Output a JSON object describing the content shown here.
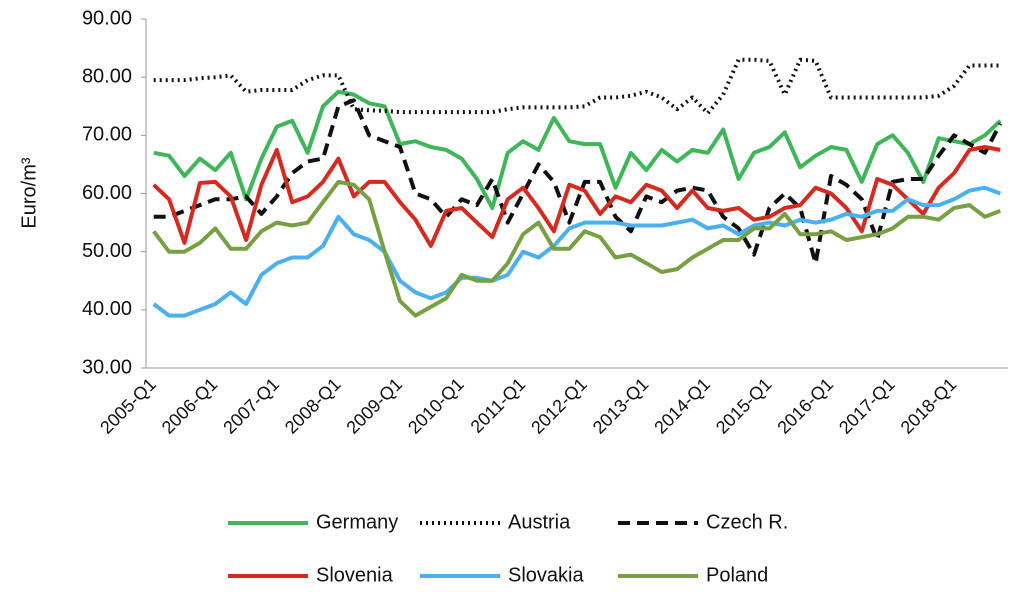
{
  "chart_data": {
    "type": "line",
    "y_label": "Euro/m³",
    "categories": [
      "2005-Q1",
      null,
      null,
      null,
      "2006-Q1",
      null,
      null,
      null,
      "2007-Q1",
      null,
      null,
      null,
      "2008-Q1",
      null,
      null,
      null,
      "2009-Q1",
      null,
      null,
      null,
      "2010-Q1",
      null,
      null,
      null,
      "2011-Q1",
      null,
      null,
      null,
      "2012-Q1",
      null,
      null,
      null,
      "2013-Q1",
      null,
      null,
      null,
      "2014-Q1",
      null,
      null,
      null,
      "2015-Q1",
      null,
      null,
      null,
      "2016-Q1",
      null,
      null,
      null,
      "2017-Q1",
      null,
      null,
      null,
      "2018-Q1",
      null,
      null,
      null
    ],
    "ylim": [
      30,
      90
    ],
    "yticks": [
      {
        "value": 30,
        "label": "30.00"
      },
      {
        "value": 40,
        "label": "40.00"
      },
      {
        "value": 50,
        "label": "50.00"
      },
      {
        "value": 60,
        "label": "60.00"
      },
      {
        "value": 70,
        "label": "70.00"
      },
      {
        "value": 80,
        "label": "80.00"
      },
      {
        "value": 90,
        "label": "90.00"
      }
    ],
    "grid": false,
    "legend": "bottom",
    "series": [
      {
        "name": "Germany",
        "color": "#3fb65a",
        "line_style": "solid",
        "values": [
          67,
          66.5,
          63,
          66,
          64,
          67,
          59,
          66,
          71.5,
          72.5,
          67,
          75,
          77.5,
          77,
          75.5,
          75,
          68.5,
          69,
          68,
          67.5,
          66,
          62.5,
          57.5,
          67,
          69,
          67.5,
          73,
          69,
          68.5,
          68.5,
          61,
          67,
          64,
          67.5,
          65.5,
          67.5,
          67,
          71,
          62.5,
          67,
          68,
          70.5,
          64.5,
          66.5,
          68,
          67.5,
          62,
          68.5,
          70,
          67,
          62,
          69.5,
          69,
          68.5,
          70,
          72.5
        ]
      },
      {
        "name": "Austria",
        "color": "#111111",
        "line_style": "dotted",
        "values": [
          79.5,
          79.5,
          79.5,
          79.8,
          80,
          80.3,
          77.5,
          77.8,
          77.8,
          77.8,
          79.5,
          80.3,
          80.3,
          74.5,
          74.3,
          74.2,
          74,
          74,
          74,
          74,
          74,
          74,
          74,
          74.5,
          74.8,
          74.8,
          74.8,
          74.8,
          75,
          76.5,
          76.5,
          76.8,
          77.5,
          76.5,
          74.5,
          76.5,
          73.8,
          77,
          83,
          83,
          82.8,
          77,
          83,
          82.8,
          76.5,
          76.5,
          76.5,
          76.5,
          76.5,
          76.5,
          76.5,
          76.8,
          78.5,
          82,
          82,
          82
        ]
      },
      {
        "name": "Czech R.",
        "color": "#111111",
        "line_style": "dashed",
        "values": [
          56,
          56,
          57,
          58,
          59,
          59,
          59.5,
          56.5,
          59.5,
          63.5,
          65.5,
          66,
          75,
          76,
          70,
          69,
          68,
          60,
          59,
          56,
          59,
          58,
          62.5,
          55,
          60,
          65,
          62,
          55,
          62,
          62,
          56,
          53.5,
          59.5,
          58.5,
          60.5,
          61,
          60.5,
          56,
          54,
          49.5,
          57.5,
          60,
          57.5,
          48,
          63,
          61.5,
          59,
          52,
          62,
          62.5,
          62.5,
          66.5,
          70,
          68.5,
          67,
          72
        ]
      },
      {
        "name": "Slovenia",
        "color": "#d42a20",
        "line_style": "solid",
        "values": [
          61.5,
          59,
          51.5,
          61.8,
          62,
          59.5,
          52,
          61.5,
          67.5,
          58.5,
          59.5,
          62,
          66,
          59.5,
          62,
          62,
          58.5,
          55.5,
          51,
          57,
          57.5,
          55,
          52.5,
          59,
          61,
          57.5,
          53.5,
          61.5,
          60.5,
          56.5,
          59.5,
          58.5,
          61.5,
          60.5,
          57.5,
          60.5,
          57.5,
          57,
          57.5,
          55.5,
          56,
          57.5,
          58,
          61,
          60,
          57.5,
          53.5,
          62.5,
          61.5,
          59,
          56.5,
          61,
          63.5,
          67.5,
          68,
          67.5
        ]
      },
      {
        "name": "Slovakia",
        "color": "#4ab0f0",
        "line_style": "solid",
        "values": [
          41,
          39,
          39,
          40,
          41,
          43,
          41,
          46,
          48,
          49,
          49,
          51,
          56,
          53,
          52,
          50,
          45,
          43,
          42,
          43,
          45.5,
          45.5,
          45,
          46,
          50,
          49,
          51,
          54,
          55,
          55,
          55,
          54.5,
          54.5,
          54.5,
          55,
          55.5,
          54,
          54.5,
          53,
          54.5,
          55,
          54.5,
          55.5,
          55,
          55.5,
          56.5,
          56,
          57,
          57,
          59,
          58,
          58,
          59,
          60.5,
          61,
          60
        ]
      },
      {
        "name": "Poland",
        "color": "#77a043",
        "line_style": "solid",
        "values": [
          53.5,
          50,
          50,
          51.5,
          54,
          50.5,
          50.5,
          53.5,
          55,
          54.5,
          55,
          58.5,
          62,
          61.5,
          59,
          50,
          41.5,
          39,
          40.5,
          42,
          46,
          45,
          45,
          48,
          53,
          55,
          50.5,
          50.5,
          53.5,
          52.5,
          49,
          49.5,
          48,
          46.5,
          47,
          49,
          50.5,
          52,
          52,
          54,
          54,
          56.5,
          53,
          53,
          53.5,
          52,
          52.5,
          53,
          54,
          56,
          56,
          55.5,
          57.5,
          58,
          56,
          57
        ]
      }
    ]
  }
}
